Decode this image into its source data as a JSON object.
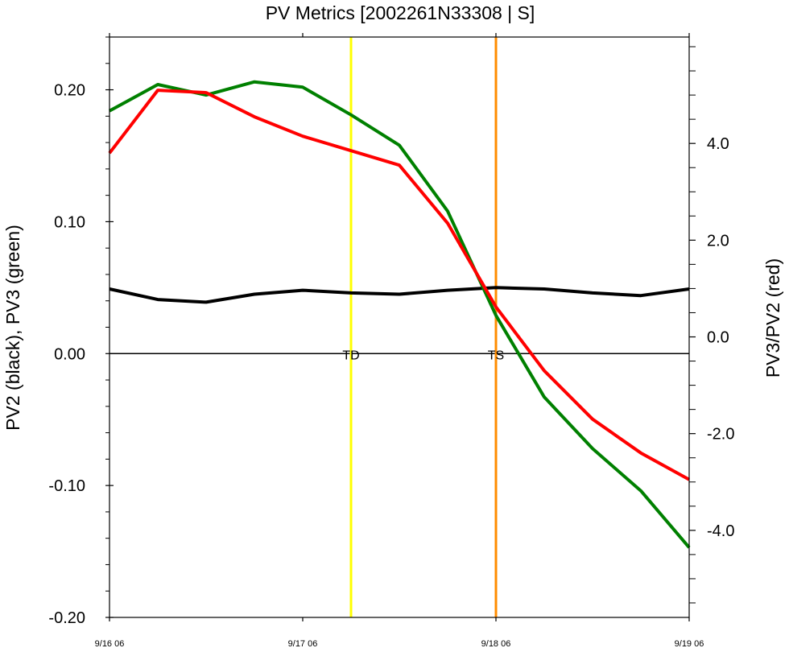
{
  "chart_data": {
    "type": "line",
    "title": "PV Metrics [2002261N33308 | S]",
    "ylabel_left": "PV2 (black), PV3 (green)",
    "ylabel_right": "PV3/PV2 (red)",
    "x_tick_labels": [
      "9/16 06",
      "9/17 06",
      "9/18 06",
      "9/19 06"
    ],
    "x": [
      0,
      0.25,
      0.5,
      0.75,
      1.0,
      1.25,
      1.5,
      1.75,
      2.0,
      2.25,
      2.5,
      2.75,
      3.0
    ],
    "xlim": [
      0,
      3
    ],
    "ylim_left": [
      -0.2,
      0.24
    ],
    "ylim_right": [
      -5.8,
      6.2
    ],
    "left_major_ticks": [
      -0.2,
      -0.1,
      0.0,
      0.1,
      0.2
    ],
    "left_tick_labels": [
      "-0.20",
      "-0.10",
      "0.00",
      "0.10",
      "0.20"
    ],
    "right_major_ticks": [
      -4,
      -2,
      0,
      2,
      4
    ],
    "right_tick_labels": [
      "-4.0",
      "-2.0",
      "0.0",
      "2.0",
      "4.0"
    ],
    "series": [
      {
        "axis": "left",
        "color": "#000000",
        "values": [
          0.049,
          0.041,
          0.039,
          0.045,
          0.048,
          0.046,
          0.045,
          0.048,
          0.05,
          0.049,
          0.046,
          0.044,
          0.049
        ]
      },
      {
        "axis": "left",
        "color": "#008000",
        "values": [
          0.184,
          0.204,
          0.196,
          0.206,
          0.202,
          0.181,
          0.158,
          0.108,
          0.029,
          -0.033,
          -0.072,
          -0.104,
          -0.147
        ]
      },
      {
        "axis": "right",
        "color": "#ff0000",
        "values": [
          3.8,
          5.1,
          5.05,
          4.55,
          4.15,
          3.85,
          3.55,
          2.35,
          0.62,
          -0.7,
          -1.7,
          -2.4,
          -2.95
        ]
      }
    ],
    "reference_lines": [
      {
        "label": "TD",
        "x": 1.25,
        "color": "#ffff00"
      },
      {
        "label": "TS",
        "x": 2.0,
        "color": "#ff8c00"
      }
    ],
    "zero_line": true,
    "grid": false,
    "legend": "none"
  }
}
